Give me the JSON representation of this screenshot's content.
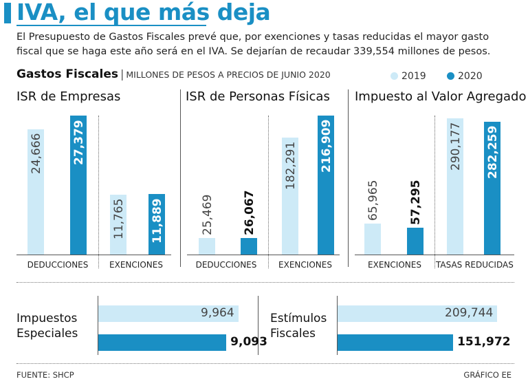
{
  "header": {
    "title": "IVA, el que más deja",
    "description": "El Presupuesto de Gastos Fiscales prevé que, por exenciones y tasas reducidas el mayor gasto fiscal que se haga este año será en el IVA. Se dejarían de recaudar 339,554 millones de pesos.",
    "subtitle": "Gastos Fiscales",
    "subtitle_sep": "|",
    "unit": "MILLONES DE PESOS A PRECIOS DE JUNIO 2020"
  },
  "legend": [
    {
      "label": "2019",
      "color": "#cdeaf7"
    },
    {
      "label": "2020",
      "color": "#1a8fc4"
    }
  ],
  "colors": {
    "y2019": "#cdeaf7",
    "y2020": "#1a8fc4",
    "accent": "#1a8fc4"
  },
  "chart_data": [
    {
      "type": "bar",
      "title": "ISR de Empresas",
      "categories": [
        "DEDUCCIONES",
        "EXENCIONES"
      ],
      "series": [
        {
          "name": "2019",
          "values": [
            24666,
            11765
          ],
          "labels": [
            "24,666",
            "11,765"
          ]
        },
        {
          "name": "2020",
          "values": [
            27379,
            11889
          ],
          "labels": [
            "27,379",
            "11,889"
          ]
        }
      ]
    },
    {
      "type": "bar",
      "title": "ISR de Personas Físicas",
      "categories": [
        "DEDUCCIONES",
        "EXENCIONES"
      ],
      "series": [
        {
          "name": "2019",
          "values": [
            25469,
            182291
          ],
          "labels": [
            "25,469",
            "182,291"
          ]
        },
        {
          "name": "2020",
          "values": [
            26067,
            216909
          ],
          "labels": [
            "26,067",
            "216,909"
          ]
        }
      ]
    },
    {
      "type": "bar",
      "title": "Impuesto al Valor Agregado",
      "categories": [
        "EXENCIONES",
        "TASAS REDUCIDAS"
      ],
      "series": [
        {
          "name": "2019",
          "values": [
            65965,
            290177
          ],
          "labels": [
            "65,965",
            "290,177"
          ]
        },
        {
          "name": "2020",
          "values": [
            57295,
            282259
          ],
          "labels": [
            "57,295",
            "282,259"
          ]
        }
      ]
    },
    {
      "type": "bar",
      "orientation": "horizontal",
      "title": "Impuestos Especiales",
      "title_lines": [
        "Impuestos",
        "Especiales"
      ],
      "series": [
        {
          "name": "2019",
          "values": [
            9964
          ],
          "labels": [
            "9,964"
          ]
        },
        {
          "name": "2020",
          "values": [
            9093
          ],
          "labels": [
            "9,093"
          ]
        }
      ]
    },
    {
      "type": "bar",
      "orientation": "horizontal",
      "title": "Estímulos Fiscales",
      "title_lines": [
        "Estímulos",
        "Fiscales"
      ],
      "series": [
        {
          "name": "2019",
          "values": [
            209744
          ],
          "labels": [
            "209,744"
          ]
        },
        {
          "name": "2020",
          "values": [
            151972
          ],
          "labels": [
            "151,972"
          ]
        }
      ]
    }
  ],
  "footer": {
    "source": "FUENTE: SHCP",
    "credit": "GRÁFICO EE"
  }
}
